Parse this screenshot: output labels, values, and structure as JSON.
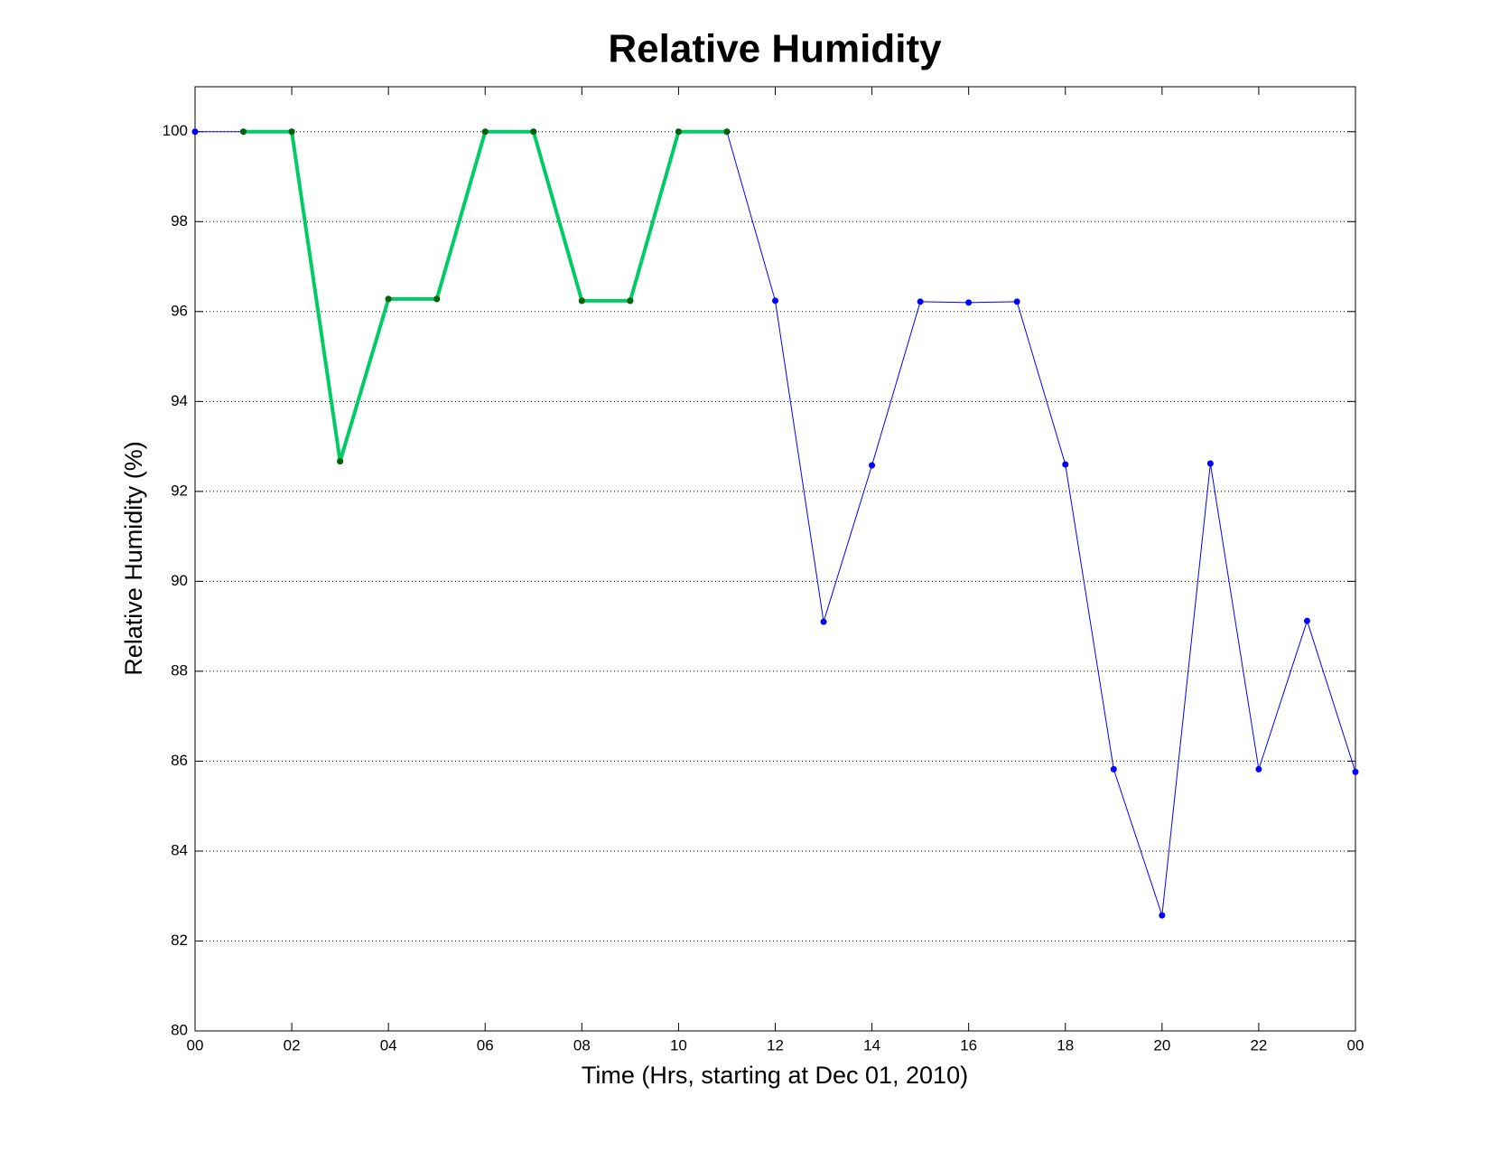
{
  "chart_data": {
    "type": "line",
    "title": "Relative Humidity",
    "x_label": "Time (Hrs, starting at Dec 01, 2010)",
    "y_label": "Relative Humidity (%)",
    "x": [
      0,
      1,
      2,
      3,
      4,
      5,
      6,
      7,
      8,
      9,
      10,
      11,
      12,
      13,
      14,
      15,
      16,
      17,
      18,
      19,
      20,
      21,
      22,
      23,
      24
    ],
    "series": [
      {
        "color": "#0000ff",
        "marker_color": "#0000ff",
        "line_width": 1,
        "values": [
          100,
          100,
          100,
          92.67,
          96.28,
          96.28,
          100,
          100,
          96.24,
          96.24,
          100,
          100,
          96.24,
          89.1,
          92.58,
          96.22,
          96.2,
          96.22,
          92.6,
          85.82,
          82.57,
          92.62,
          85.82,
          89.12,
          85.76
        ]
      },
      {
        "color": "#00cc66",
        "marker_color": "#006400",
        "line_width": 4,
        "values": [
          null,
          100,
          100,
          92.67,
          96.28,
          96.28,
          100,
          100,
          96.24,
          96.24,
          100,
          100,
          null,
          null,
          null,
          null,
          null,
          null,
          null,
          null,
          null,
          null,
          null,
          null,
          null
        ]
      }
    ],
    "xlim": [
      0,
      24
    ],
    "ylim": [
      80,
      101
    ],
    "xticks": [
      {
        "value": 0,
        "label": "00"
      },
      {
        "value": 2,
        "label": "02"
      },
      {
        "value": 4,
        "label": "04"
      },
      {
        "value": 6,
        "label": "06"
      },
      {
        "value": 8,
        "label": "08"
      },
      {
        "value": 10,
        "label": "10"
      },
      12,
      14,
      16,
      18,
      20,
      22,
      {
        "value": 24,
        "label": "00"
      }
    ],
    "yticks": [
      80,
      82,
      84,
      86,
      88,
      90,
      92,
      94,
      96,
      98,
      100
    ],
    "grid": "y"
  }
}
